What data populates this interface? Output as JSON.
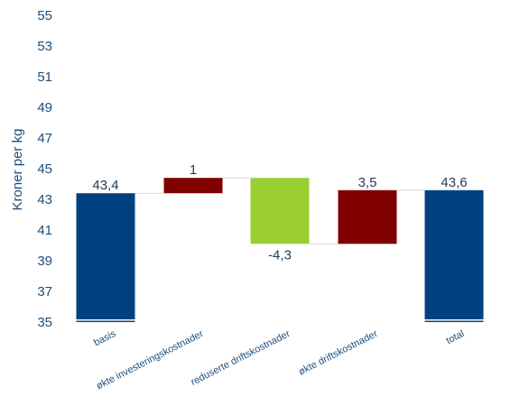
{
  "chart_data": {
    "type": "bar",
    "subtype": "waterfall",
    "title": "",
    "ylabel": "Kroner per kg",
    "xlabel": "",
    "ylim": [
      35,
      55
    ],
    "yticks": [
      "35",
      "37",
      "39",
      "41",
      "43",
      "45",
      "47",
      "49",
      "51",
      "53",
      "55"
    ],
    "grid": false,
    "legend": "none",
    "categories": [
      "basis",
      "økte investeringskostnader",
      "reduserte driftskostnader",
      "økte driftskostnader",
      "total"
    ],
    "bars": [
      {
        "category": "basis",
        "kind": "total",
        "start": 35,
        "end": 43.4,
        "label": "43,4",
        "color": "#00427f"
      },
      {
        "category": "økte investeringskostnader",
        "kind": "increase",
        "start": 43.4,
        "end": 44.4,
        "label": "1",
        "color": "#800000"
      },
      {
        "category": "reduserte driftskostnader",
        "kind": "decrease",
        "start": 44.4,
        "end": 40.1,
        "label": "-4,3",
        "color": "#9acd32"
      },
      {
        "category": "økte driftskostnader",
        "kind": "increase",
        "start": 40.1,
        "end": 43.6,
        "label": "3,5",
        "color": "#800000"
      },
      {
        "category": "total",
        "kind": "total",
        "start": 35,
        "end": 43.6,
        "label": "43,6",
        "color": "#00427f"
      }
    ]
  }
}
